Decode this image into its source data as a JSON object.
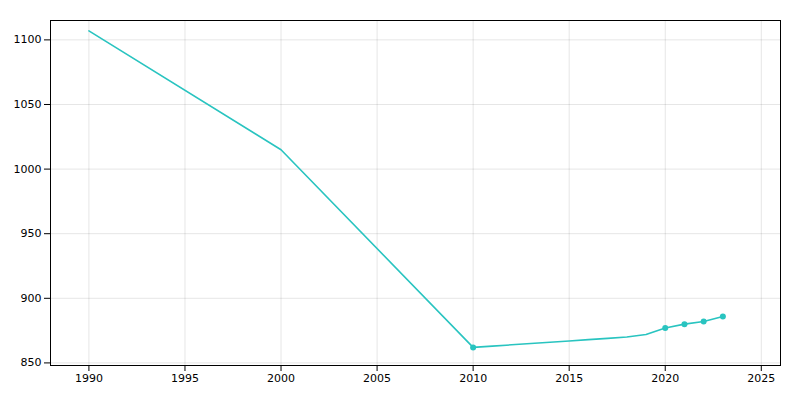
{
  "chart_data": {
    "type": "line",
    "series": [
      {
        "type": "line",
        "color": "#29c4c0",
        "x": [
          1990,
          2000,
          2010,
          2011,
          2012,
          2013,
          2014,
          2015,
          2016,
          2017,
          2018,
          2019,
          2020,
          2021,
          2022,
          2023
        ],
        "values": [
          1107,
          1015,
          862,
          863,
          864,
          865,
          866,
          867,
          868,
          869,
          870,
          872,
          877,
          880,
          882,
          886
        ]
      },
      {
        "type": "scatter",
        "color": "#29c4c0",
        "marker": "circle",
        "x": [
          2010,
          2020,
          2021,
          2022,
          2023
        ],
        "values": [
          862,
          877,
          880,
          882,
          886
        ]
      }
    ],
    "xlim": [
      1988.0,
      2026.0
    ],
    "ylim": [
      848,
      1115
    ],
    "xticks": [
      1990,
      1995,
      2000,
      2005,
      2010,
      2015,
      2020,
      2025
    ],
    "yticks": [
      850,
      900,
      950,
      1000,
      1050,
      1100
    ],
    "grid": true
  }
}
